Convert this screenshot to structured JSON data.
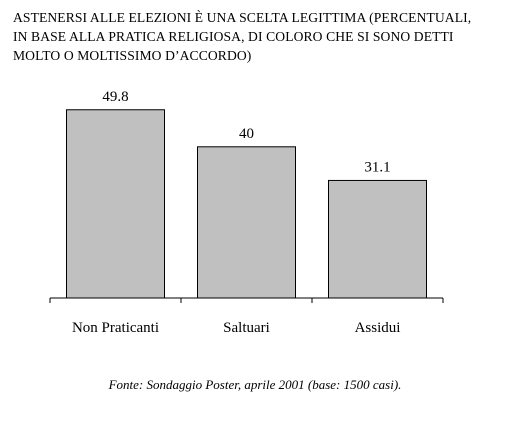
{
  "chart_data": {
    "type": "bar",
    "title_lines": [
      "ASTENERSI ALLE ELEZIONI È UNA SCELTA LEGITTIMA (PERCENTUALI,",
      "IN BASE ALLA PRATICA RELIGIOSA, DI COLORO CHE SI SONO DETTI",
      "MOLTO O MOLTISSIMO D’ACCORDO)"
    ],
    "categories": [
      "Non Praticanti",
      "Saltuari",
      "Assidui"
    ],
    "values": [
      49.8,
      40,
      31.1
    ],
    "value_labels": [
      "49.8",
      "40",
      "31.1"
    ],
    "ylim": [
      0,
      50
    ],
    "xlabel": "",
    "ylabel": "",
    "grid": false,
    "bar_color": "#c0c0c0",
    "bar_edge_color": "#000000"
  },
  "source": "Fonte: Sondaggio Poster, aprile 2001 (base: 1500 casi)."
}
